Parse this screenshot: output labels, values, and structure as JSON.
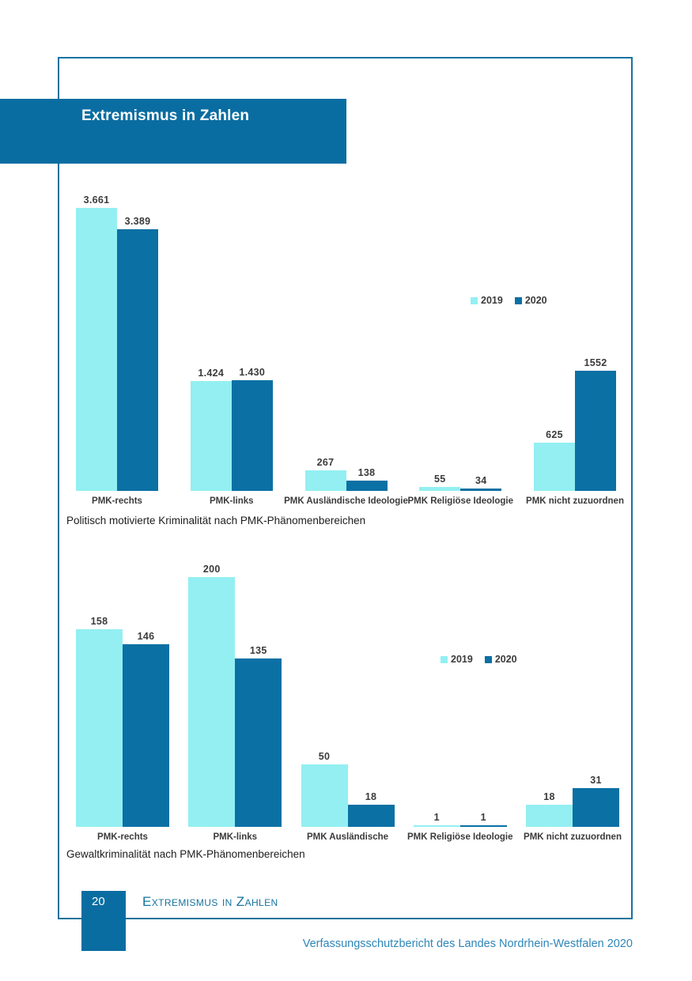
{
  "header": {
    "title": "Extremismus in Zahlen"
  },
  "colors": {
    "band_blue": "#0a6da1",
    "frame_blue": "#16739e",
    "series": {
      "2019": "#93eff2",
      "2020": "#0b70a4"
    },
    "value_label_gray": "#3b3b3b",
    "footer_blue": "#16739e",
    "report_title_blue": "#2e86b8"
  },
  "chart_data": [
    {
      "type": "bar",
      "caption": "Politisch motivierte Kriminalität nach PMK-Phänomenbereichen",
      "categories": [
        "PMK-rechts",
        "PMK-links",
        "PMK Ausländische Ideologie",
        "PMK Religiöse Ideologie",
        "PMK nicht zuzuordnen"
      ],
      "series": [
        {
          "name": "2019",
          "values": [
            3661,
            1424,
            267,
            55,
            625
          ],
          "value_labels": [
            "3.661",
            "1.424",
            "267",
            "55",
            "625"
          ]
        },
        {
          "name": "2020",
          "values": [
            3389,
            1430,
            138,
            34,
            1552
          ],
          "value_labels": [
            "3.389",
            "1.430",
            "138",
            "34",
            "1552"
          ]
        }
      ],
      "ylim": [
        0,
        3700
      ],
      "grid": false,
      "axes_visible": false,
      "legend_position": "right-middle",
      "legend": [
        "2019",
        "2020"
      ]
    },
    {
      "type": "bar",
      "caption": "Gewaltkriminalität nach PMK-Phänomenbereichen",
      "categories": [
        "PMK-rechts",
        "PMK-links",
        "PMK Ausländische",
        "PMK Religiöse Ideologie",
        "PMK nicht zuzuordnen"
      ],
      "series": [
        {
          "name": "2019",
          "values": [
            158,
            200,
            50,
            1,
            18
          ],
          "value_labels": [
            "158",
            "200",
            "50",
            "1",
            "18"
          ]
        },
        {
          "name": "2020",
          "values": [
            146,
            135,
            18,
            1,
            31
          ],
          "value_labels": [
            "146",
            "135",
            "18",
            "1",
            "31"
          ]
        }
      ],
      "ylim": [
        0,
        200
      ],
      "grid": false,
      "axes_visible": false,
      "legend_position": "right-middle",
      "legend": [
        "2019",
        "2020"
      ]
    }
  ],
  "footer": {
    "page_number": "20",
    "section_title": "Extremismus in Zahlen",
    "report_title": "Verfassungsschutzbericht des Landes Nordrhein-Westfalen 2020"
  }
}
